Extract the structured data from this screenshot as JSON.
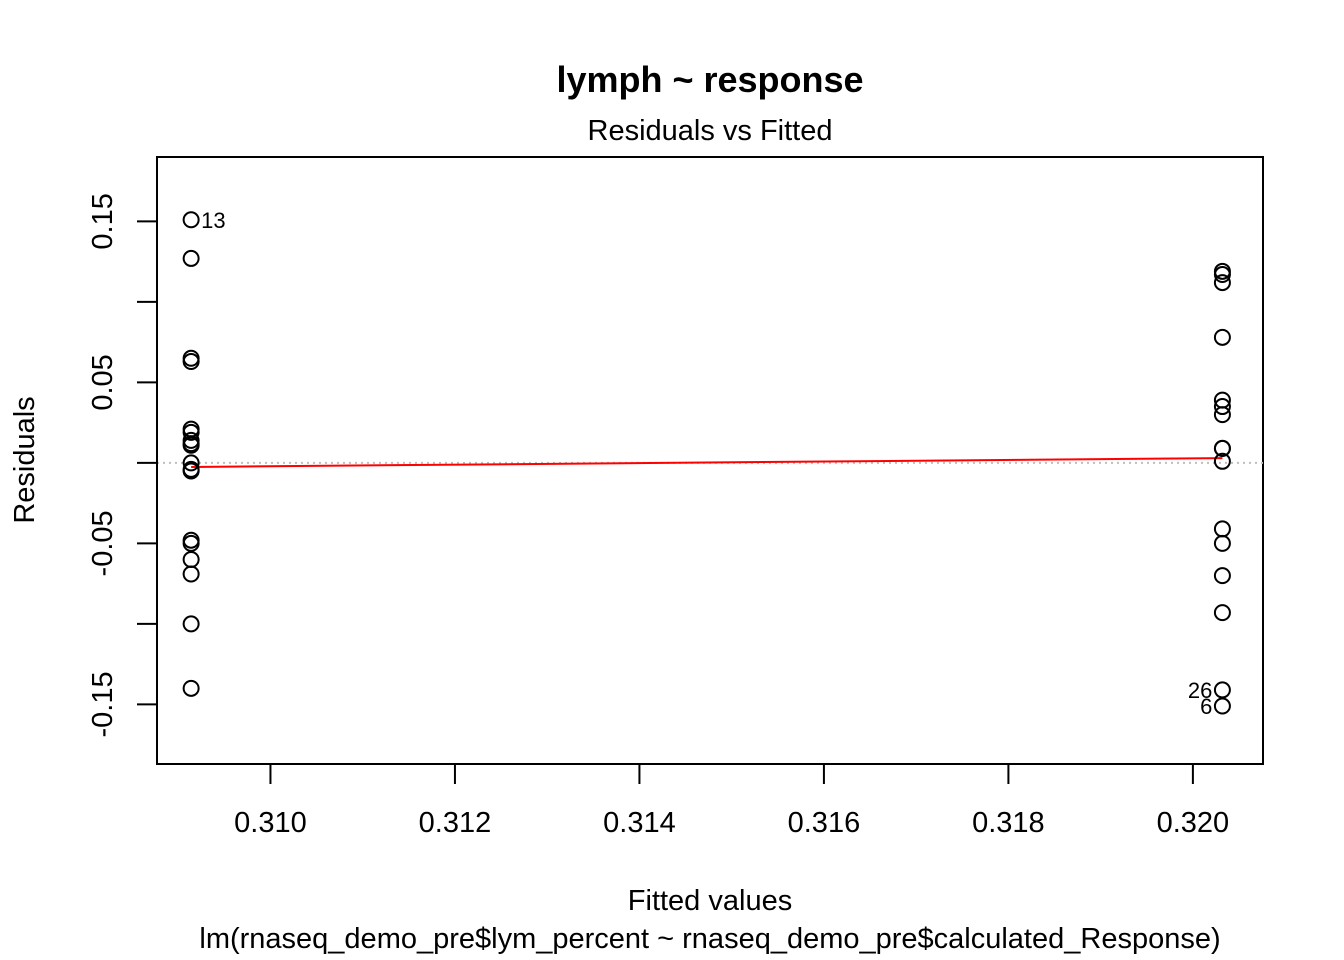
{
  "chart_data": {
    "type": "scatter",
    "title": "lymph ~ response",
    "subtitle": "Residuals vs Fitted",
    "xlabel": "Fitted values",
    "xlabel2": "lm(rnaseq_demo_pre$lym_percent ~ rnaseq_demo_pre$calculated_Response)",
    "ylabel": "Residuals",
    "xlim": [
      0.30877,
      0.32076
    ],
    "ylim": [
      -0.187,
      0.19
    ],
    "x_ticks": [
      0.31,
      0.312,
      0.314,
      0.316,
      0.318,
      0.32
    ],
    "x_tick_labels": [
      "0.310",
      "0.312",
      "0.314",
      "0.316",
      "0.318",
      "0.320"
    ],
    "y_ticks": [
      -0.15,
      -0.1,
      -0.05,
      0.0,
      0.05,
      0.1,
      0.15
    ],
    "y_tick_labels": [
      "-0.15",
      "",
      "-0.05",
      "",
      "0.05",
      "",
      "0.15"
    ],
    "grid": false,
    "zero_line": {
      "y": 0,
      "style": "dotted",
      "color": "#bebebe"
    },
    "series": [
      {
        "x": [
          0.30914,
          0.30914,
          0.30914,
          0.30914,
          0.30914,
          0.30914,
          0.30914,
          0.30914,
          0.30914,
          0.30914,
          0.30914,
          0.30914,
          0.30914,
          0.30914,
          0.30914,
          0.30914,
          0.30914,
          0.30914,
          0.32032,
          0.32032,
          0.32032,
          0.32032,
          0.32032,
          0.32032,
          0.32032,
          0.32032,
          0.32032,
          0.32032,
          0.32032,
          0.32032,
          0.32032,
          0.32032,
          0.32032,
          0.32032
        ],
        "y": [
          0.151,
          0.127,
          0.065,
          0.063,
          0.021,
          0.019,
          0.012,
          0.011,
          0.0,
          -0.004,
          -0.005,
          -0.048,
          -0.05,
          -0.06,
          -0.069,
          -0.1,
          -0.14,
          0.014,
          0.119,
          0.117,
          0.112,
          0.078,
          0.039,
          0.035,
          0.03,
          0.009,
          0.001,
          -0.041,
          -0.05,
          -0.07,
          -0.093,
          -0.141,
          -0.151,
          0.009
        ],
        "color": "#000000"
      }
    ],
    "smooth_line": {
      "x": [
        0.30914,
        0.32032
      ],
      "y": [
        -0.0025,
        0.003
      ],
      "color": "#ff0000"
    },
    "point_labels": [
      {
        "text": "13",
        "x": 0.30914,
        "y": 0.151,
        "side": "right"
      },
      {
        "text": "26",
        "x": 0.32032,
        "y": -0.141,
        "side": "left"
      },
      {
        "text": "6",
        "x": 0.32032,
        "y": -0.151,
        "side": "left"
      }
    ]
  }
}
